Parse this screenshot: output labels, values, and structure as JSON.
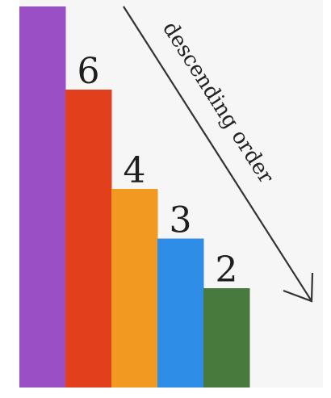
{
  "chart_data": {
    "type": "bar",
    "categories": [
      "",
      "",
      "",
      "",
      ""
    ],
    "values": [
      null,
      6,
      4,
      3,
      2
    ],
    "value_labels": [
      "",
      "6",
      "4",
      "3",
      "2"
    ],
    "colors": [
      "#9B4FC5",
      "#E23F1C",
      "#F19921",
      "#2E8DE6",
      "#487A3E"
    ],
    "title": "",
    "xlabel": "",
    "ylabel": "",
    "grid": false,
    "annotation": {
      "text": "descending order",
      "direction": "down-right arrow"
    }
  },
  "background_color": "#F6F6F6"
}
